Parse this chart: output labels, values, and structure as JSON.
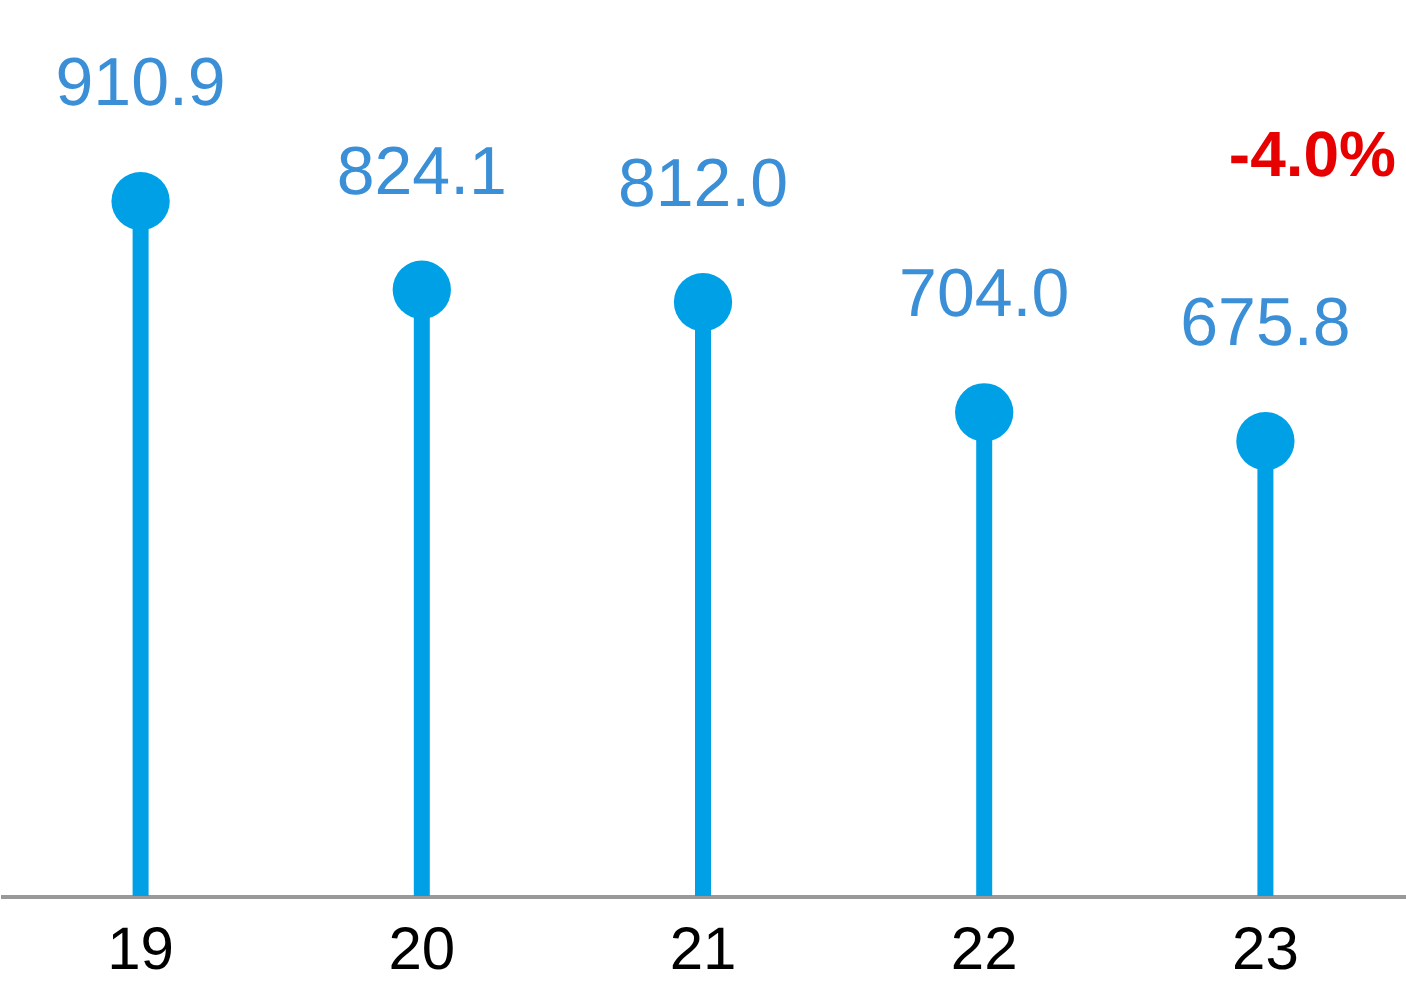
{
  "chart_data": {
    "type": "lollipop",
    "categories": [
      "19",
      "20",
      "21",
      "22",
      "23"
    ],
    "series": [
      {
        "color": "#00a0e6",
        "values": [
          910.9,
          824.1,
          812.0,
          704.0,
          675.8
        ],
        "value_labels": [
          "910.9",
          "824.1",
          "812.0",
          "704.0",
          "675.8"
        ]
      }
    ],
    "ylim": [
      230,
      1108
    ],
    "tick_labels": "x",
    "grid": false,
    "marker": "circle",
    "annotations": [
      "-4.0%"
    ]
  }
}
